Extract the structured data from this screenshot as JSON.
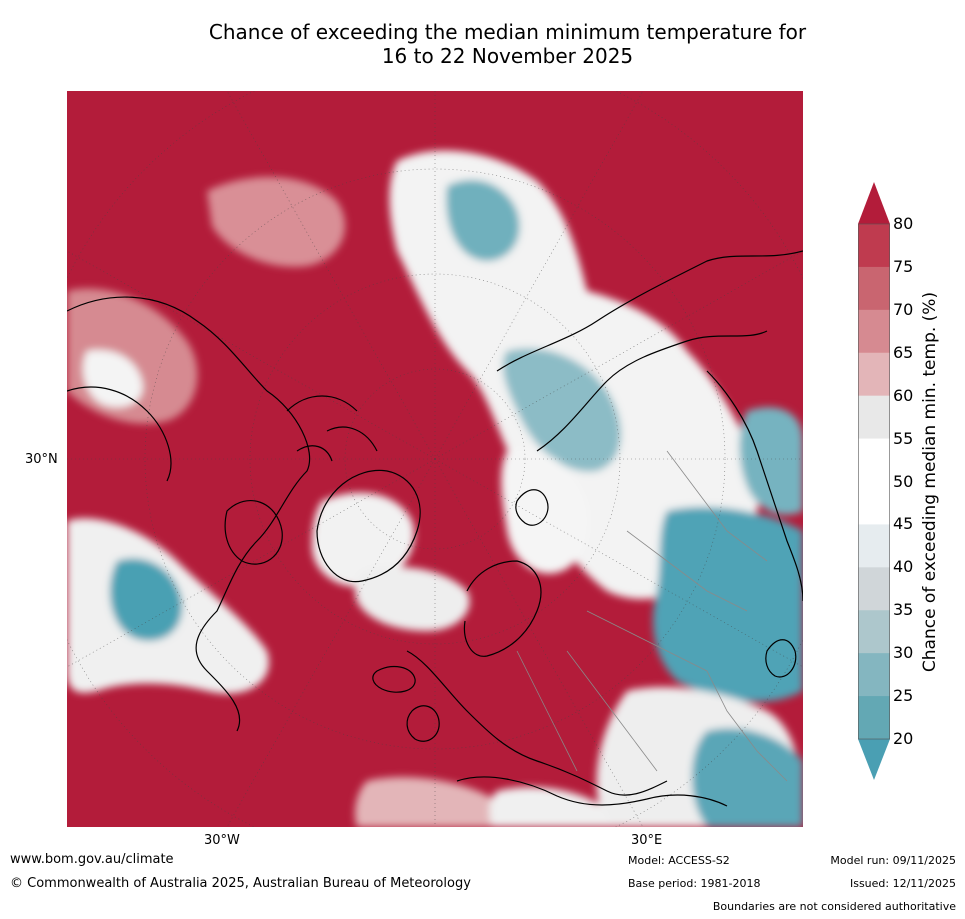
{
  "title": {
    "line1": "Chance of exceeding the median minimum temperature for",
    "line2": "16 to 22 November 2025"
  },
  "map": {
    "projection": "north-polar-stereographic",
    "region": "Northern Hemisphere",
    "lat_label": "30°N",
    "lon_labels": [
      "30°W",
      "30°E"
    ]
  },
  "colorbar": {
    "label": "Chance of exceeding median min. temp. (%)",
    "ticks": [
      "80",
      "75",
      "70",
      "65",
      "60",
      "55",
      "50",
      "45",
      "40",
      "35",
      "30",
      "25",
      "20"
    ],
    "colors": {
      "c80_up": "#b31c3a",
      "c75_80": "#bf3b4f",
      "c70_75": "#c96570",
      "c65_70": "#d68a91",
      "c60_65": "#e3b5b8",
      "c55_60": "#e8e8e8",
      "c50_55": "#ffffff",
      "c45_50": "#ffffff",
      "c40_45": "#e6ecef",
      "c35_40": "#d0d6d9",
      "c30_35": "#adc7cc",
      "c25_30": "#84b6c0",
      "c20_25": "#63a8b4",
      "c_below_20": "#4a9fb3"
    }
  },
  "footer": {
    "website": "www.bom.gov.au/climate",
    "copyright": "© Commonwealth of Australia 2025, Australian Bureau of Meteorology",
    "model": "Model: ACCESS-S2",
    "base_period": "Base period: 1981-2018",
    "model_run": "Model run: 09/11/2025",
    "issued": "Issued: 12/11/2025",
    "disclaimer": "Boundaries are not considered authoritative"
  }
}
